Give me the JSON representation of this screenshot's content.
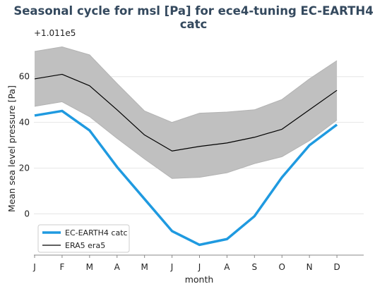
{
  "chart_data": {
    "type": "line",
    "title": "Seasonal cycle for msl [Pa] for ece4-tuning EC-EARTH4 catc",
    "xlabel": "month",
    "ylabel": "Mean sea level pressure [Pa]",
    "y_offset_label": "+1.011e5",
    "categories": [
      "J",
      "F",
      "M",
      "A",
      "M",
      "J",
      "J",
      "A",
      "S",
      "O",
      "N",
      "D"
    ],
    "ylim": [
      -18,
      75
    ],
    "yticks": [
      0,
      20,
      40,
      60
    ],
    "grid": true,
    "legend_position": "bottom-left",
    "series": [
      {
        "name": "EC-EARTH4 catc",
        "color": "#1f9ae0",
        "values": [
          43,
          45,
          36.5,
          20.5,
          6.5,
          -7.5,
          -13.5,
          -11,
          -1,
          16,
          30,
          39
        ]
      },
      {
        "name": "ERA5 era5",
        "color": "#000000",
        "values": [
          59,
          61,
          56,
          45.5,
          34.5,
          27.5,
          29.5,
          31,
          33.5,
          37,
          45.5,
          54
        ]
      }
    ],
    "band": {
      "color": "#c0c0c0",
      "upper": [
        71,
        73,
        69.5,
        57,
        45,
        40,
        44,
        44.5,
        45.5,
        50,
        59,
        67
      ],
      "lower": [
        47,
        49,
        42.5,
        33,
        24,
        15.5,
        16,
        18,
        22,
        25,
        32,
        41
      ]
    }
  }
}
